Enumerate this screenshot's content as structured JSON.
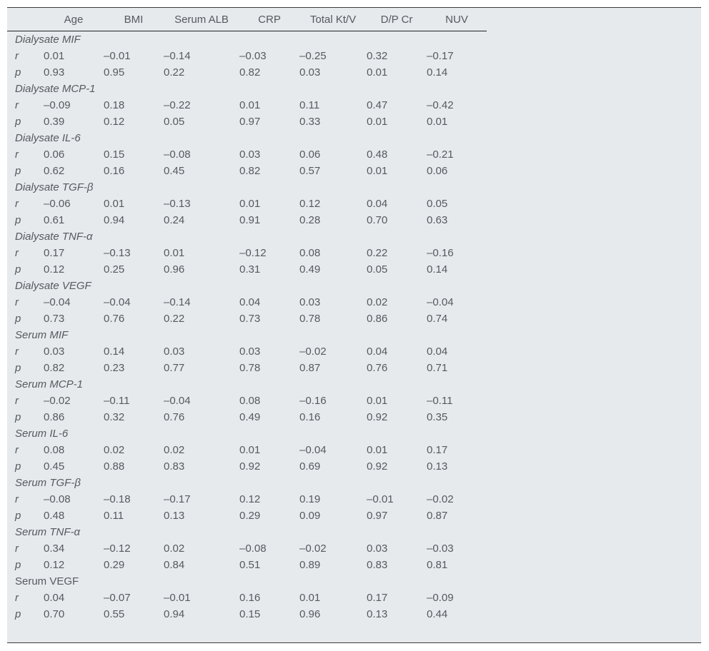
{
  "columns": [
    "Age",
    "BMI",
    "Serum ALB",
    "CRP",
    "Total Kt/V",
    "D/P Cr",
    "NUV"
  ],
  "groups": [
    {
      "label": "Dialysate MIF",
      "italic": true,
      "r": [
        "0.01",
        "–0.01",
        "–0.14",
        "–0.03",
        "–0.25",
        "0.32",
        "–0.17"
      ],
      "p": [
        "0.93",
        "0.95",
        "0.22",
        "0.82",
        "0.03",
        "0.01",
        "0.14"
      ]
    },
    {
      "label": "Dialysate MCP-1",
      "italic": true,
      "r": [
        "–0.09",
        "0.18",
        "–0.22",
        "0.01",
        "0.11",
        "0.47",
        "–0.42"
      ],
      "p": [
        "0.39",
        "0.12",
        "0.05",
        "0.97",
        "0.33",
        "0.01",
        "0.01"
      ]
    },
    {
      "label": "Dialysate IL-6",
      "italic": true,
      "r": [
        "0.06",
        "0.15",
        "–0.08",
        "0.03",
        "0.06",
        "0.48",
        "–0.21"
      ],
      "p": [
        "0.62",
        "0.16",
        "0.45",
        "0.82",
        "0.57",
        "0.01",
        "0.06"
      ]
    },
    {
      "label": "Dialysate TGF-β",
      "italic": true,
      "r": [
        "–0.06",
        "0.01",
        "–0.13",
        "0.01",
        "0.12",
        "0.04",
        "0.05"
      ],
      "p": [
        "0.61",
        "0.94",
        "0.24",
        "0.91",
        "0.28",
        "0.70",
        "0.63"
      ]
    },
    {
      "label": "Dialysate TNF-α",
      "italic": true,
      "r": [
        "0.17",
        "–0.13",
        "0.01",
        "–0.12",
        "0.08",
        "0.22",
        "–0.16"
      ],
      "p": [
        "0.12",
        "0.25",
        "0.96",
        "0.31",
        "0.49",
        "0.05",
        "0.14"
      ]
    },
    {
      "label": "Dialysate VEGF",
      "italic": true,
      "r": [
        "–0.04",
        "–0.04",
        "–0.14",
        "0.04",
        "0.03",
        "0.02",
        "–0.04"
      ],
      "p": [
        "0.73",
        "0.76",
        "0.22",
        "0.73",
        "0.78",
        "0.86",
        "0.74"
      ]
    },
    {
      "label": "Serum MIF",
      "italic": true,
      "r": [
        "0.03",
        "0.14",
        "0.03",
        "0.03",
        "–0.02",
        "0.04",
        "0.04"
      ],
      "p": [
        "0.82",
        "0.23",
        "0.77",
        "0.78",
        "0.87",
        "0.76",
        "0.71"
      ]
    },
    {
      "label": "Serum MCP-1",
      "italic": true,
      "r": [
        "–0.02",
        "–0.11",
        "–0.04",
        "0.08",
        "–0.16",
        "0.01",
        "–0.11"
      ],
      "p": [
        "0.86",
        "0.32",
        "0.76",
        "0.49",
        "0.16",
        "0.92",
        "0.35"
      ]
    },
    {
      "label": "Serum IL-6",
      "italic": true,
      "r": [
        "0.08",
        "0.02",
        "0.02",
        "0.01",
        "–0.04",
        "0.01",
        "0.17"
      ],
      "p": [
        "0.45",
        "0.88",
        "0.83",
        "0.92",
        "0.69",
        "0.92",
        "0.13"
      ]
    },
    {
      "label": "Serum TGF-β",
      "italic": true,
      "r": [
        "–0.08",
        "–0.18",
        "–0.17",
        "0.12",
        "0.19",
        "–0.01",
        "–0.02"
      ],
      "p": [
        "0.48",
        "0.11",
        "0.13",
        "0.29",
        "0.09",
        "0.97",
        "0.87"
      ]
    },
    {
      "label": "Serum TNF-α",
      "italic": true,
      "r": [
        "0.34",
        "–0.12",
        "0.02",
        "–0.08",
        "–0.02",
        "0.03",
        "–0.03"
      ],
      "p": [
        "0.12",
        "0.29",
        "0.84",
        "0.51",
        "0.89",
        "0.83",
        "0.81"
      ]
    },
    {
      "label": "Serum VEGF",
      "italic": false,
      "r": [
        "0.04",
        "–0.07",
        "–0.01",
        "0.16",
        "0.01",
        "0.17",
        "–0.09"
      ],
      "p": [
        "0.70",
        "0.55",
        "0.94",
        "0.15",
        "0.96",
        "0.13",
        "0.44"
      ]
    }
  ],
  "stat_labels": {
    "r": "r",
    "p": "p"
  },
  "colors": {
    "background": "#e6eaed",
    "text": "#555a5e",
    "rule": "#222222"
  }
}
